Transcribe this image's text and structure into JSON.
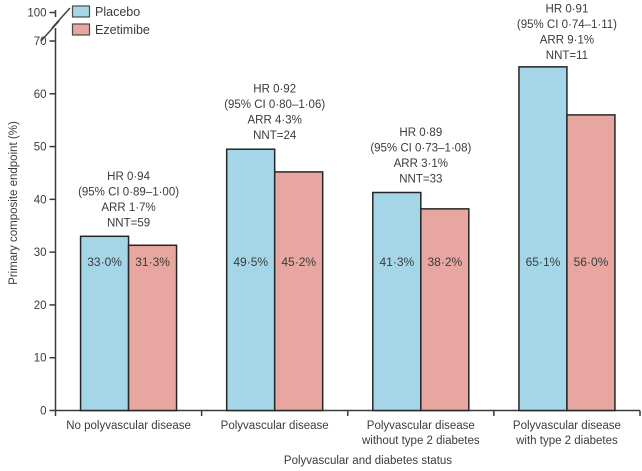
{
  "chart_data": {
    "type": "bar",
    "title": "",
    "xlabel": "Polyvascular and diabetes status",
    "ylabel": "Primary composite endpoint (%)",
    "ylim": [
      0,
      70
    ],
    "y_break_top_label": "100",
    "y_ticks": [
      0,
      10,
      20,
      30,
      40,
      50,
      60,
      70
    ],
    "grid": "off",
    "legend_position": "top-left",
    "categories": [
      [
        "No polyvascular disease"
      ],
      [
        "Polyvascular disease"
      ],
      [
        "Polyvascular disease",
        "without type 2 diabetes"
      ],
      [
        "Polyvascular disease",
        "with type 2 diabetes"
      ]
    ],
    "series": [
      {
        "name": "Placebo",
        "color": "#a5d6e8",
        "values": [
          33.0,
          49.5,
          41.3,
          65.1
        ],
        "value_labels": [
          "33·0%",
          "49·5%",
          "41·3%",
          "65·1%"
        ]
      },
      {
        "name": "Ezetimibe",
        "color": "#e8a6a0",
        "values": [
          31.3,
          45.2,
          38.2,
          56.0
        ],
        "value_labels": [
          "31·3%",
          "45·2%",
          "38·2%",
          "56·0%"
        ]
      }
    ],
    "annotations": [
      {
        "lines": [
          "HR 0·94",
          "(95% CI 0·89–1·00)",
          "ARR 1·7%",
          "NNT=59"
        ]
      },
      {
        "lines": [
          "HR 0·92",
          "(95% CI 0·80–1·06)",
          "ARR 4·3%",
          "NNT=24"
        ]
      },
      {
        "lines": [
          "HR 0·89",
          "(95% CI 0·73–1·08)",
          "ARR 3·1%",
          "NNT=33"
        ]
      },
      {
        "lines": [
          "HR 0·91",
          "(95% CI 0·74–1·11)",
          "ARR 9·1%",
          "NNT=11"
        ]
      }
    ],
    "colors": {
      "placebo_fill": "#a5d6e8",
      "ezetimibe_fill": "#e8a6a0",
      "bar_border": "#262626",
      "axis": "#3b3b3b",
      "text": "#3b3b3b",
      "background": "#ffffff"
    }
  }
}
